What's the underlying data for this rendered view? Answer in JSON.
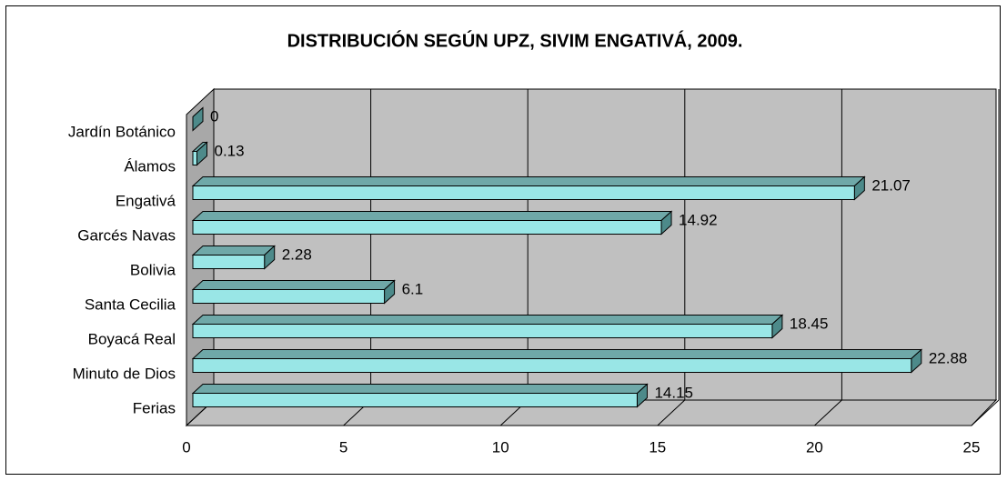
{
  "chart_data": {
    "type": "bar",
    "orientation": "horizontal",
    "title": "DISTRIBUCIÓN SEGÚN UPZ, SIVIM ENGATIVÁ, 2009.",
    "categories": [
      "Ferias",
      "Minuto de Dios",
      "Boyacá Real",
      "Santa Cecilia",
      "Bolivia",
      "Garcés Navas",
      "Engativá",
      "Álamos",
      "Jardín Botánico"
    ],
    "values": [
      14.15,
      22.88,
      18.45,
      6.1,
      2.28,
      14.92,
      21.07,
      0.13,
      0
    ],
    "color": "#99e6e6",
    "xlim": [
      0,
      25
    ],
    "xticks": [
      0,
      5,
      10,
      15,
      20,
      25
    ],
    "grid": true
  }
}
